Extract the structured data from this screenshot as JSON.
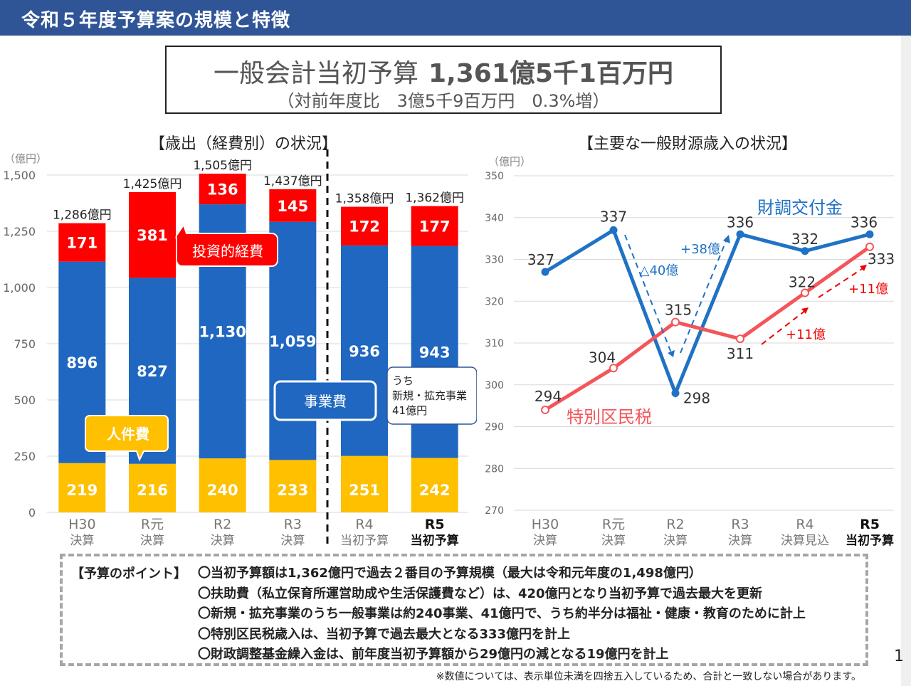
{
  "header": {
    "title": "令和５年度予算案の規模と特徴"
  },
  "headline": {
    "main_label": "一般会計当初予算",
    "main_amount": "1,361億5千1百万円",
    "sub": "（対前年度比　3億5千9百万円　0.3%増）"
  },
  "colors": {
    "header_bg": "#2f5597",
    "investment": "#ff0000",
    "business": "#1f67c0",
    "personnel": "#ffc000",
    "zaicho": "#1f72c4",
    "kuminzei": "#f4555a"
  },
  "chart_data": [
    {
      "type": "bar",
      "title": "【歳出（経費別）の状況】",
      "unit_label": "（億円）",
      "ylim": [
        0,
        1500
      ],
      "y_ticks": [
        "0",
        "250",
        "500",
        "750",
        "1,000",
        "1,250",
        "1,500"
      ],
      "y_tick_values": [
        0,
        250,
        500,
        750,
        1000,
        1250,
        1500
      ],
      "categories_top": [
        "H30",
        "R元",
        "R2",
        "R3",
        "R4",
        "R5"
      ],
      "categories_bottom": [
        "決算",
        "決算",
        "決算",
        "決算",
        "当初予算",
        "当初予算"
      ],
      "totals": [
        "1,286億円",
        "1,425億円",
        "1,505億円",
        "1,437億円",
        "1,358億円",
        "1,362億円"
      ],
      "series": [
        {
          "name": "人件費",
          "values": [
            219,
            216,
            240,
            233,
            251,
            242
          ]
        },
        {
          "name": "事業費",
          "values": [
            896,
            827,
            1130,
            1059,
            936,
            943
          ]
        },
        {
          "name": "投資的経費",
          "values": [
            171,
            381,
            136,
            145,
            172,
            177
          ]
        }
      ],
      "value_labels": {
        "人件費": [
          "219",
          "216",
          "240",
          "233",
          "251",
          "242"
        ],
        "事業費": [
          "896",
          "827",
          "1,130",
          "1,059",
          "936",
          "943"
        ],
        "投資的経費": [
          "171",
          "381",
          "136",
          "145",
          "172",
          "177"
        ]
      },
      "callouts": {
        "personnel": "人件費",
        "investment": "投資的経費",
        "business": "事業費",
        "new_projects": [
          "うち",
          "新規・拡充事業",
          "41億円"
        ]
      },
      "grid": true
    },
    {
      "type": "line",
      "title": "【主要な一般財源歳入の状況】",
      "unit_label": "（億円）",
      "ylim": [
        270,
        350
      ],
      "y_ticks": [
        "270",
        "280",
        "290",
        "300",
        "310",
        "320",
        "330",
        "340",
        "350"
      ],
      "y_tick_values": [
        270,
        280,
        290,
        300,
        310,
        320,
        330,
        340,
        350
      ],
      "categories_top": [
        "H30",
        "R元",
        "R2",
        "R3",
        "R4",
        "R5"
      ],
      "categories_bottom": [
        "決算",
        "決算",
        "決算",
        "決算",
        "決算見込",
        "当初予算"
      ],
      "series": [
        {
          "name": "財調交付金",
          "values": [
            327,
            337,
            298,
            336,
            332,
            336
          ]
        },
        {
          "name": "特別区民税",
          "values": [
            294,
            304,
            315,
            311,
            322,
            333
          ]
        }
      ],
      "annotations": {
        "drop": "△40億",
        "rise": "+38億",
        "plus11_a": "+11億",
        "plus11_b": "+11億"
      },
      "grid": true
    }
  ],
  "points": {
    "label": "【予算のポイント】",
    "items": [
      "〇当初予算額は1,362億円で過去２番目の予算規模（最大は令和元年度の1,498億円）",
      "〇扶助費（私立保育所運営助成や生活保護費など）は、420億円となり当初予算で過去最大を更新",
      "〇新規・拡充事業のうち一般事業は約240事業、41億円で、うち約半分は福祉・健康・教育のために計上",
      "〇特別区民税歳入は、当初予算で過去最大となる333億円を計上",
      "〇財政調整基金繰入金は、前年度当初予算額から29億円の減となる19億円を計上"
    ]
  },
  "footnote": "※数値については、表示単位未満を四捨五入しているため、合計と一致しない場合があります。",
  "page_number": "1"
}
